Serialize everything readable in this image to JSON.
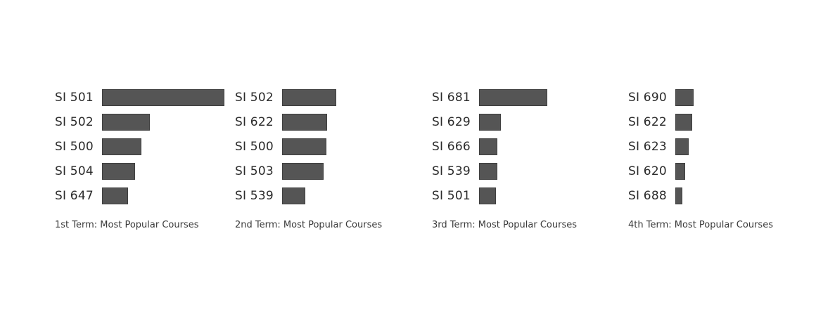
{
  "chart_data": [
    {
      "type": "bar",
      "orientation": "horizontal",
      "title": "1st Term: Most Popular Courses",
      "categories": [
        "SI 501",
        "SI 502",
        "SI 500",
        "SI 504",
        "SI 647"
      ],
      "values": [
        100,
        39,
        32,
        27,
        21
      ]
    },
    {
      "type": "bar",
      "orientation": "horizontal",
      "title": "2nd Term: Most Popular Courses",
      "categories": [
        "SI 502",
        "SI 622",
        "SI 500",
        "SI 503",
        "SI 539"
      ],
      "values": [
        44,
        37,
        36,
        34,
        19
      ]
    },
    {
      "type": "bar",
      "orientation": "horizontal",
      "title": "3rd Term: Most Popular Courses",
      "categories": [
        "SI 681",
        "SI 629",
        "SI 666",
        "SI 539",
        "SI 501"
      ],
      "values": [
        56,
        18,
        15,
        15,
        14
      ]
    },
    {
      "type": "bar",
      "orientation": "horizontal",
      "title": "4th Term: Most Popular Courses",
      "categories": [
        "SI 690",
        "SI 622",
        "SI 623",
        "SI 620",
        "SI 688"
      ],
      "values": [
        15,
        14,
        11,
        8,
        6
      ]
    }
  ],
  "colors": {
    "bar": "#555555",
    "text": "#2b2b2b"
  }
}
